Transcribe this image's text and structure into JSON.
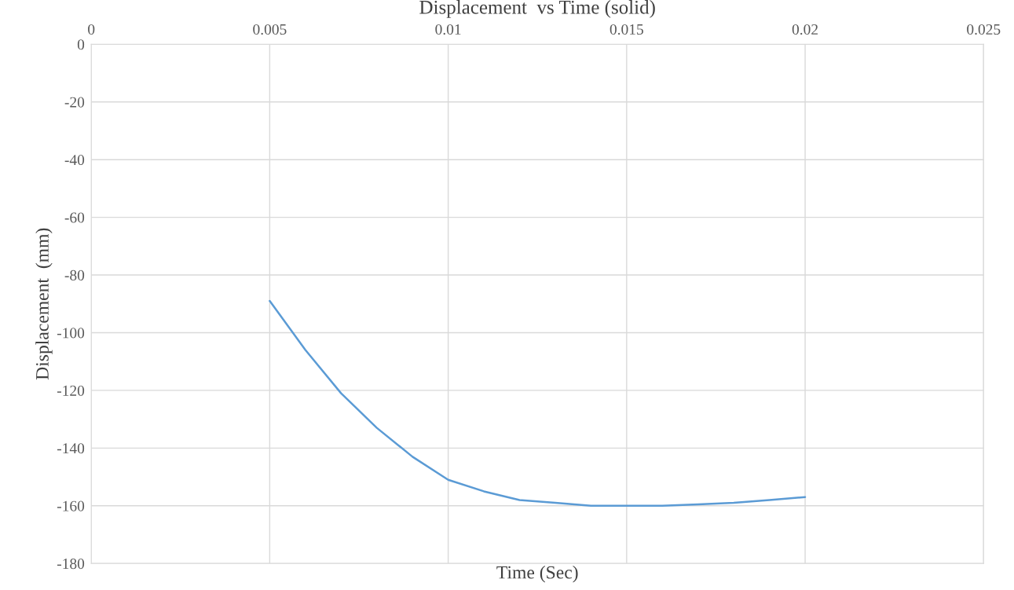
{
  "chart_data": {
    "type": "line",
    "title": "Displacement  vs Time (solid)",
    "xlabel": "Time (Sec)",
    "ylabel": "Displacement  (mm)",
    "x": [
      0.005,
      0.006,
      0.007,
      0.008,
      0.009,
      0.01,
      0.011,
      0.012,
      0.013,
      0.014,
      0.015,
      0.016,
      0.017,
      0.018,
      0.019,
      0.02
    ],
    "series": [
      {
        "color": "#5b9bd5",
        "values": [
          -89,
          -106,
          -121,
          -133,
          -143,
          -151,
          -155,
          -158,
          -159,
          -160,
          -160,
          -160,
          -159.5,
          -159,
          -158,
          -157
        ]
      }
    ],
    "xlim": [
      0,
      0.025
    ],
    "xticks": [
      0,
      0.005,
      0.01,
      0.015,
      0.02,
      0.025
    ],
    "ylim": [
      -180,
      0
    ],
    "yticks": [
      0,
      -20,
      -40,
      -60,
      -80,
      -100,
      -120,
      -140,
      -160,
      -180
    ],
    "grid": true,
    "legend": false,
    "marker": "none",
    "line_style": "solid"
  }
}
